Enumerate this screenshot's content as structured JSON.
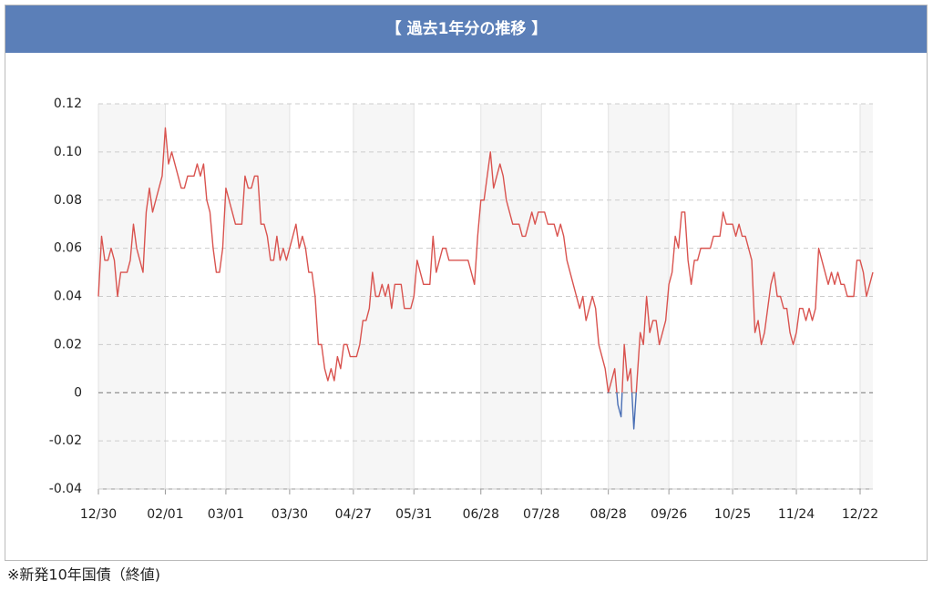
{
  "chart_data": {
    "type": "line",
    "title": "【 過去1年分の推移 】",
    "footnote": "※新発10年国債（終値)",
    "color": "#d9534f",
    "negative_color": "#4a6fb5",
    "grid": true,
    "shaded_bands": true,
    "ylim": [
      -0.04,
      0.12
    ],
    "yticks": [
      -0.04,
      -0.02,
      0,
      0.02,
      0.04,
      0.06,
      0.08,
      {
        "value": 0.1,
        "label": "0.10"
      },
      0.12
    ],
    "categories": [
      "12/30",
      null,
      null,
      null,
      null,
      null,
      null,
      null,
      null,
      null,
      null,
      null,
      null,
      null,
      null,
      null,
      null,
      null,
      null,
      null,
      null,
      "02/01",
      null,
      null,
      null,
      null,
      null,
      null,
      null,
      null,
      null,
      null,
      null,
      null,
      null,
      null,
      null,
      null,
      null,
      null,
      "03/01",
      null,
      null,
      null,
      null,
      null,
      null,
      null,
      null,
      null,
      null,
      null,
      null,
      null,
      null,
      null,
      null,
      null,
      null,
      null,
      "03/30",
      null,
      null,
      null,
      null,
      null,
      null,
      null,
      null,
      null,
      null,
      null,
      null,
      null,
      null,
      null,
      null,
      null,
      null,
      null,
      "04/27",
      null,
      null,
      null,
      null,
      null,
      null,
      null,
      null,
      null,
      null,
      null,
      null,
      null,
      null,
      null,
      null,
      null,
      null,
      "05/31",
      null,
      null,
      null,
      null,
      null,
      null,
      null,
      null,
      null,
      null,
      null,
      null,
      null,
      null,
      null,
      null,
      null,
      null,
      null,
      null,
      "06/28",
      null,
      null,
      null,
      null,
      null,
      null,
      null,
      null,
      null,
      null,
      null,
      null,
      null,
      null,
      null,
      null,
      null,
      null,
      "07/28",
      null,
      null,
      null,
      null,
      null,
      null,
      null,
      null,
      null,
      null,
      null,
      null,
      null,
      null,
      null,
      null,
      null,
      null,
      null,
      null,
      "08/28",
      null,
      null,
      null,
      null,
      null,
      null,
      null,
      null,
      null,
      null,
      null,
      null,
      null,
      null,
      null,
      null,
      null,
      null,
      "09/26",
      null,
      null,
      null,
      null,
      null,
      null,
      null,
      null,
      null,
      null,
      null,
      null,
      null,
      null,
      null,
      null,
      null,
      null,
      null,
      "10/25",
      null,
      null,
      null,
      null,
      null,
      null,
      null,
      null,
      null,
      null,
      null,
      null,
      null,
      null,
      null,
      null,
      null,
      null,
      null,
      "11/24",
      null,
      null,
      null,
      null,
      null,
      null,
      null,
      null,
      null,
      null,
      null,
      null,
      null,
      null,
      null,
      null,
      null,
      null,
      null,
      "12/22",
      null,
      null,
      null,
      null
    ],
    "values": [
      0.04,
      0.065,
      0.055,
      0.055,
      0.06,
      0.055,
      0.04,
      0.05,
      0.05,
      0.05,
      0.055,
      0.07,
      0.06,
      0.055,
      0.05,
      0.075,
      0.085,
      0.075,
      0.08,
      0.085,
      0.09,
      0.11,
      0.095,
      0.1,
      0.095,
      0.09,
      0.085,
      0.085,
      0.09,
      0.09,
      0.09,
      0.095,
      0.09,
      0.095,
      0.08,
      0.075,
      0.06,
      0.05,
      0.05,
      0.06,
      0.085,
      0.08,
      0.075,
      0.07,
      0.07,
      0.07,
      0.09,
      0.085,
      0.085,
      0.09,
      0.09,
      0.07,
      0.07,
      0.065,
      0.055,
      0.055,
      0.065,
      0.055,
      0.06,
      0.055,
      0.06,
      0.065,
      0.07,
      0.06,
      0.065,
      0.06,
      0.05,
      0.05,
      0.04,
      0.02,
      0.02,
      0.01,
      0.005,
      0.01,
      0.005,
      0.015,
      0.01,
      0.02,
      0.02,
      0.015,
      0.015,
      0.015,
      0.02,
      0.03,
      0.03,
      0.035,
      0.05,
      0.04,
      0.04,
      0.045,
      0.04,
      0.045,
      0.035,
      0.045,
      0.045,
      0.045,
      0.035,
      0.035,
      0.035,
      0.04,
      0.055,
      0.05,
      0.045,
      0.045,
      0.045,
      0.065,
      0.05,
      0.055,
      0.06,
      0.06,
      0.055,
      0.055,
      0.055,
      0.055,
      0.055,
      0.055,
      0.055,
      0.05,
      0.045,
      0.065,
      0.08,
      0.08,
      0.09,
      0.1,
      0.085,
      0.09,
      0.095,
      0.09,
      0.08,
      0.075,
      0.07,
      0.07,
      0.07,
      0.065,
      0.065,
      0.07,
      0.075,
      0.07,
      0.075,
      0.075,
      0.075,
      0.07,
      0.07,
      0.07,
      0.065,
      0.07,
      0.065,
      0.055,
      0.05,
      0.045,
      0.04,
      0.035,
      0.04,
      0.03,
      0.035,
      0.04,
      0.035,
      0.02,
      0.015,
      0.01,
      0,
      0.005,
      0.01,
      -0.005,
      -0.01,
      0.02,
      0.005,
      0.01,
      -0.015,
      0.005,
      0.025,
      0.02,
      0.04,
      0.025,
      0.03,
      0.03,
      0.02,
      0.025,
      0.03,
      0.045,
      0.05,
      0.065,
      0.06,
      0.075,
      0.075,
      0.055,
      0.045,
      0.055,
      0.055,
      0.06,
      0.06,
      0.06,
      0.06,
      0.065,
      0.065,
      0.065,
      0.075,
      0.07,
      0.07,
      0.07,
      0.065,
      0.07,
      0.065,
      0.065,
      0.06,
      0.055,
      0.025,
      0.03,
      0.02,
      0.025,
      0.035,
      0.045,
      0.05,
      0.04,
      0.04,
      0.035,
      0.035,
      0.025,
      0.02,
      0.025,
      0.035,
      0.035,
      0.03,
      0.035,
      0.03,
      0.035,
      0.06,
      0.055,
      0.05,
      0.045,
      0.05,
      0.045,
      0.05,
      0.045,
      0.045,
      0.04,
      0.04,
      0.04,
      0.055,
      0.055,
      0.05,
      0.04,
      0.045,
      0.05
    ]
  }
}
